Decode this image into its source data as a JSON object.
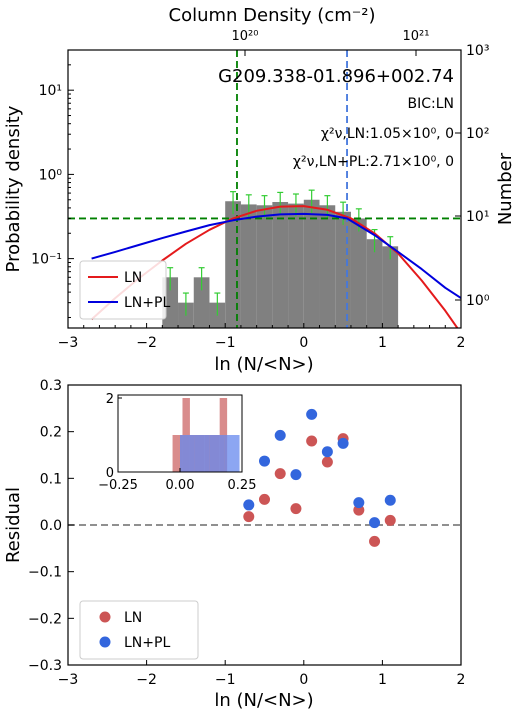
{
  "chart_data": [
    {
      "type": "histogram",
      "title": "G209.338-01.896+002.74",
      "annotations": {
        "bic": "BIC:LN",
        "chi_ln": "χ²ν,LN:1.05×10⁰, 0",
        "chi_lnpl": "χ²ν,LN+PL:2.71×10⁰, 0"
      },
      "xlabel": "ln (N/<N>)",
      "ylabel": "Probability density",
      "ylabel_right": "Number",
      "xlabel_top": "Column Density (cm⁻²)",
      "xlim": [
        -3,
        2
      ],
      "ylim": [
        0.015,
        30
      ],
      "yscale": "log",
      "x_ticks": [
        "−3",
        "−2",
        "−1",
        "0",
        "1",
        "2"
      ],
      "y_ticks": [
        "10⁻¹",
        "10⁰",
        "10¹"
      ],
      "y_ticks_right": [
        "10⁰",
        "10¹",
        "10²",
        "10³"
      ],
      "x_ticks_top": [
        "10²⁰",
        "10²¹"
      ],
      "bars": {
        "edges": [
          -1.8,
          -1.6,
          -1.4,
          -1.2,
          -1.0,
          -0.8,
          -0.6,
          -0.4,
          -0.2,
          0.0,
          0.2,
          0.4,
          0.6,
          0.8,
          1.0,
          1.2
        ],
        "heights": [
          0.06,
          0.03,
          0.06,
          0.03,
          0.48,
          0.44,
          0.43,
          0.47,
          0.45,
          0.5,
          0.43,
          0.36,
          0.3,
          0.17,
          0.14
        ],
        "color": "#808080",
        "error_color": "#33cc33"
      },
      "series": [
        {
          "name": "LN",
          "color": "#e41a1c",
          "x": [
            -2.7,
            -2.4,
            -2.1,
            -1.8,
            -1.5,
            -1.2,
            -0.9,
            -0.6,
            -0.3,
            0.0,
            0.3,
            0.6,
            0.9,
            1.2,
            1.5,
            1.8,
            2.0
          ],
          "y": [
            0.019,
            0.034,
            0.058,
            0.095,
            0.15,
            0.22,
            0.3,
            0.37,
            0.415,
            0.42,
            0.38,
            0.3,
            0.2,
            0.115,
            0.055,
            0.024,
            0.013
          ]
        },
        {
          "name": "LN+PL",
          "color": "#0000dd",
          "x": [
            -2.7,
            -2.4,
            -2.1,
            -1.8,
            -1.5,
            -1.2,
            -0.9,
            -0.6,
            -0.3,
            0.0,
            0.3,
            0.55,
            0.9,
            1.2,
            1.5,
            1.8,
            2.0
          ],
          "y": [
            0.1,
            0.12,
            0.145,
            0.175,
            0.21,
            0.25,
            0.285,
            0.315,
            0.335,
            0.34,
            0.33,
            0.3,
            0.19,
            0.12,
            0.075,
            0.045,
            0.034
          ]
        }
      ],
      "reference_lines": [
        {
          "type": "vertical",
          "x": -0.85,
          "color": "#008000",
          "style": "dashed"
        },
        {
          "type": "vertical",
          "x": 0.55,
          "color": "#4477dd",
          "style": "dashed"
        },
        {
          "type": "horizontal",
          "y": 0.3,
          "color": "#008000",
          "style": "dashed"
        }
      ],
      "legend": {
        "position": "lower-left",
        "entries": [
          "LN",
          "LN+PL"
        ]
      }
    },
    {
      "type": "scatter",
      "xlabel": "ln (N/<N>)",
      "ylabel": "Residual",
      "xlim": [
        -3,
        2
      ],
      "ylim": [
        -0.3,
        0.3
      ],
      "x_ticks": [
        "−3",
        "−2",
        "−1",
        "0",
        "1",
        "2"
      ],
      "y_ticks": [
        "−0.3",
        "−0.2",
        "−0.1",
        "0.0",
        "0.1",
        "0.2",
        "0.3"
      ],
      "zero_line": {
        "y": 0,
        "color": "#808080",
        "style": "dashed"
      },
      "series": [
        {
          "name": "LN",
          "color": "#cc5555",
          "points": [
            [
              -0.7,
              0.018
            ],
            [
              -0.5,
              0.055
            ],
            [
              -0.3,
              0.11
            ],
            [
              -0.1,
              0.035
            ],
            [
              0.1,
              0.18
            ],
            [
              0.3,
              0.135
            ],
            [
              0.5,
              0.185
            ],
            [
              0.7,
              0.032
            ],
            [
              0.9,
              -0.035
            ],
            [
              1.1,
              0.01
            ]
          ]
        },
        {
          "name": "LN+PL",
          "color": "#3366dd",
          "points": [
            [
              -0.7,
              0.043
            ],
            [
              -0.5,
              0.137
            ],
            [
              -0.3,
              0.192
            ],
            [
              -0.1,
              0.108
            ],
            [
              0.1,
              0.237
            ],
            [
              0.3,
              0.157
            ],
            [
              0.5,
              0.175
            ],
            [
              0.7,
              0.048
            ],
            [
              0.9,
              0.005
            ],
            [
              1.1,
              0.053
            ]
          ]
        }
      ],
      "legend": {
        "position": "lower-left",
        "entries": [
          "LN",
          "LN+PL"
        ]
      }
    },
    {
      "type": "histogram",
      "xlim": [
        -0.25,
        0.25
      ],
      "ylim": [
        0,
        2
      ],
      "x_ticks": [
        "−0.25",
        "0.00",
        "0.25"
      ],
      "y_ticks": [
        "0",
        "2"
      ],
      "series": [
        {
          "name": "LN",
          "color": "#cc6666",
          "bars": [
            [
              -0.03,
              0.01,
              1
            ],
            [
              0.01,
              0.04,
              2
            ],
            [
              0.04,
              0.1,
              1
            ],
            [
              0.1,
              0.16,
              1
            ],
            [
              0.16,
              0.19,
              2
            ]
          ]
        },
        {
          "name": "LN+PL",
          "color": "#6688ee",
          "bars": [
            [
              0.0,
              0.06,
              1
            ],
            [
              0.06,
              0.12,
              1
            ],
            [
              0.12,
              0.18,
              1
            ],
            [
              0.18,
              0.24,
              1
            ]
          ]
        }
      ]
    }
  ]
}
